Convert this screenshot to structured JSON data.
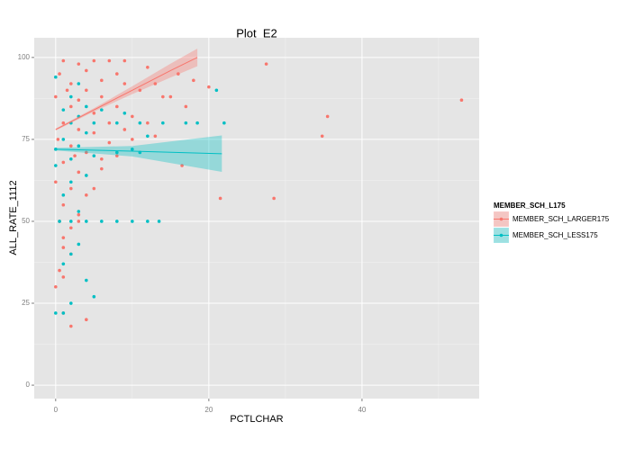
{
  "chart_data": {
    "type": "scatter",
    "title": "Plot_E2",
    "x_label": "PCTLCHAR",
    "y_label": "ALL_RATE_1112",
    "legend_title": "MEMBER_SCH_L175",
    "legend_position": "right",
    "grid": true,
    "xlim": [
      -2.8,
      55.3
    ],
    "ylim": [
      -4.1,
      106
    ],
    "xticks": [
      0,
      20,
      40
    ],
    "yticks": [
      0,
      25,
      50,
      75,
      100
    ],
    "xminor": [
      10,
      30,
      50
    ],
    "yminor": [
      12.5,
      37.5,
      62.5,
      87.5
    ],
    "series": [
      {
        "name": "MEMBER_SCH_LARGER175",
        "color": "#F8766D",
        "x": [
          27.5,
          53,
          35.5,
          34.8,
          21.5,
          28.5,
          16,
          18,
          20,
          17,
          2,
          4,
          1,
          0,
          0.5,
          1,
          2,
          1,
          3,
          5,
          6,
          8,
          10,
          12,
          14,
          12,
          9,
          7,
          5,
          3,
          1,
          0.5,
          2,
          4,
          6,
          8,
          1,
          3,
          5,
          7,
          2,
          4,
          6,
          1,
          3,
          0,
          2,
          4,
          1,
          3,
          0.5,
          2,
          1,
          9,
          11,
          13,
          15,
          10,
          9,
          8,
          6,
          4,
          2,
          0,
          0.3,
          5,
          7,
          3,
          1.5,
          2.5,
          16.5,
          13
        ],
        "y": [
          98,
          87,
          82,
          76,
          57,
          57,
          95,
          93,
          91,
          85,
          18,
          20,
          22,
          30,
          35,
          33,
          40,
          45,
          50,
          60,
          66,
          70,
          75,
          80,
          88,
          97,
          99,
          99,
          99,
          98,
          99,
          95,
          92,
          90,
          88,
          85,
          80,
          78,
          77,
          74,
          73,
          71,
          69,
          68,
          65,
          62,
          60,
          58,
          55,
          52,
          50,
          48,
          42,
          92,
          90,
          92,
          88,
          82,
          78,
          95,
          93,
          96,
          85,
          88,
          75,
          83,
          80,
          87,
          90,
          70,
          67,
          76
        ],
        "fit": {
          "x": [
            0,
            5,
            10,
            15,
            18.5
          ],
          "y": [
            78,
            84,
            90,
            96,
            100
          ],
          "lower": [
            77.7,
            83.5,
            88.8,
            93.9,
            97.3
          ],
          "upper": [
            78.3,
            84.5,
            91.2,
            98.1,
            102.7
          ]
        }
      },
      {
        "name": "MEMBER_SCH_LESS175",
        "color": "#00BFC4",
        "x": [
          0,
          1,
          2,
          5,
          4,
          1,
          2,
          3,
          0.5,
          2,
          4,
          6,
          8,
          10,
          12,
          13.5,
          3,
          1,
          2,
          4,
          0,
          2,
          5,
          8,
          11,
          0,
          3,
          1,
          4,
          2,
          5,
          8,
          11,
          14,
          17,
          22,
          3,
          1,
          6,
          4,
          2,
          21,
          3,
          0,
          9,
          12,
          18.5,
          10
        ],
        "y": [
          22,
          22,
          25,
          27,
          32,
          37,
          40,
          43,
          50,
          50,
          50,
          50,
          50,
          50,
          50,
          50,
          53,
          58,
          62,
          64,
          67,
          69,
          70,
          71,
          71,
          72,
          73,
          75,
          77,
          80,
          80,
          80,
          80,
          80,
          80,
          80,
          82,
          84,
          84,
          85,
          88,
          90,
          92,
          94,
          83,
          76,
          80,
          72
        ],
        "fit": {
          "x": [
            0,
            10,
            21.7
          ],
          "y": [
            72,
            71.4,
            70.6
          ],
          "lower": [
            71.6,
            69.8,
            65.1
          ],
          "upper": [
            72.4,
            73,
            76.2
          ]
        }
      }
    ]
  }
}
